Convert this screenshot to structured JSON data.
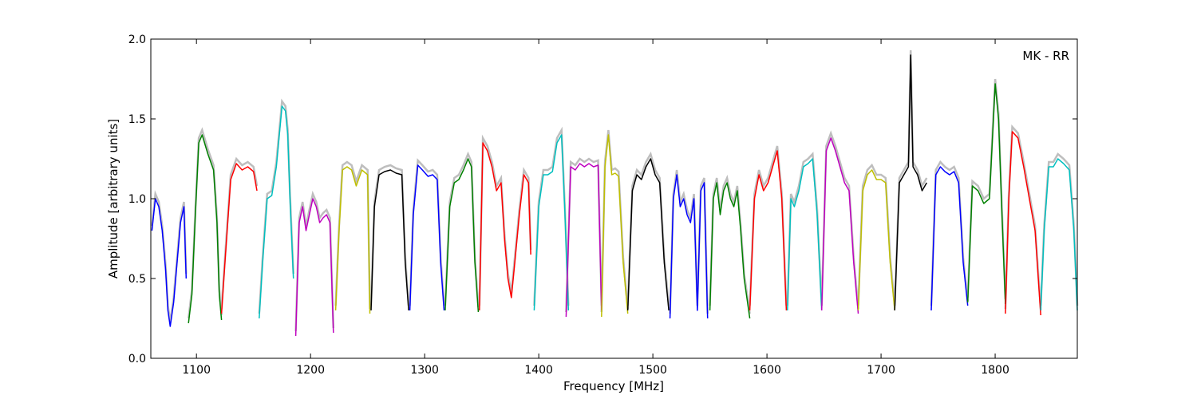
{
  "chart_data": {
    "type": "line",
    "title": "",
    "annotation": "MK - RR",
    "xlabel": "Frequency [MHz]",
    "ylabel": "Amplitude [arbitrary units]",
    "xlim": [
      1060,
      1872
    ],
    "ylim": [
      0.0,
      2.0
    ],
    "xticks": [
      1100,
      1200,
      1300,
      1400,
      1500,
      1600,
      1700,
      1800
    ],
    "xtick_labels": [
      "1100",
      "1200",
      "1300",
      "1400",
      "1500",
      "1600",
      "1700",
      "1800"
    ],
    "yticks": [
      0.0,
      0.5,
      1.0,
      1.5,
      2.0
    ],
    "ytick_labels": [
      "0.0",
      "0.5",
      "1.0",
      "1.5",
      "2.0"
    ],
    "grid": false,
    "legend": false,
    "background_color": "#bebebe",
    "series": [
      {
        "color": "#0000ff",
        "x": [
          1061,
          1064,
          1067,
          1070,
          1073,
          1075,
          1077,
          1080,
          1083,
          1086,
          1089,
          1091
        ],
        "y": [
          0.8,
          1.0,
          0.95,
          0.8,
          0.55,
          0.3,
          0.2,
          0.35,
          0.6,
          0.85,
          0.95,
          0.5
        ]
      },
      {
        "color": "#008000",
        "x": [
          1093,
          1096,
          1099,
          1102,
          1105,
          1110,
          1115,
          1118,
          1120,
          1122
        ],
        "y": [
          0.22,
          0.4,
          0.9,
          1.35,
          1.4,
          1.28,
          1.18,
          0.85,
          0.4,
          0.24
        ]
      },
      {
        "color": "#ff0000",
        "x": [
          1122,
          1125,
          1130,
          1135,
          1140,
          1145,
          1150,
          1153
        ],
        "y": [
          0.28,
          0.6,
          1.12,
          1.22,
          1.18,
          1.2,
          1.17,
          1.05
        ]
      },
      {
        "color": "#00bfbf",
        "x": [
          1155,
          1158,
          1162,
          1166,
          1170,
          1175,
          1178,
          1180,
          1182,
          1185
        ],
        "y": [
          0.25,
          0.6,
          1.0,
          1.02,
          1.2,
          1.58,
          1.55,
          1.4,
          1.0,
          0.5
        ]
      },
      {
        "color": "#bf00bf",
        "x": [
          1187,
          1190,
          1193,
          1196,
          1199,
          1202,
          1205,
          1208,
          1211,
          1214,
          1217,
          1220
        ],
        "y": [
          0.14,
          0.85,
          0.95,
          0.8,
          0.9,
          1.0,
          0.95,
          0.85,
          0.88,
          0.9,
          0.85,
          0.16
        ]
      },
      {
        "color": "#bfbf00",
        "x": [
          1222,
          1225,
          1228,
          1232,
          1236,
          1240,
          1245,
          1250,
          1252
        ],
        "y": [
          0.3,
          0.8,
          1.18,
          1.2,
          1.18,
          1.08,
          1.18,
          1.15,
          0.28
        ]
      },
      {
        "color": "#000000",
        "x": [
          1253,
          1256,
          1260,
          1265,
          1270,
          1275,
          1280,
          1283,
          1286
        ],
        "y": [
          0.3,
          0.95,
          1.15,
          1.17,
          1.18,
          1.16,
          1.15,
          0.6,
          0.3
        ]
      },
      {
        "color": "#0000ff",
        "x": [
          1287,
          1290,
          1294,
          1298,
          1303,
          1307,
          1311,
          1314,
          1317
        ],
        "y": [
          0.3,
          0.9,
          1.21,
          1.18,
          1.14,
          1.15,
          1.12,
          0.6,
          0.3
        ]
      },
      {
        "color": "#008000",
        "x": [
          1318,
          1322,
          1326,
          1330,
          1334,
          1338,
          1341,
          1344,
          1347
        ],
        "y": [
          0.3,
          0.95,
          1.1,
          1.12,
          1.18,
          1.25,
          1.2,
          0.6,
          0.29
        ]
      },
      {
        "color": "#ff0000",
        "x": [
          1348,
          1351,
          1355,
          1359,
          1363,
          1367,
          1370,
          1373,
          1376,
          1379,
          1383,
          1387,
          1391,
          1393
        ],
        "y": [
          0.3,
          1.35,
          1.3,
          1.2,
          1.05,
          1.1,
          0.75,
          0.5,
          0.38,
          0.6,
          0.9,
          1.15,
          1.1,
          0.65
        ]
      },
      {
        "color": "#00bfbf",
        "x": [
          1396,
          1400,
          1404,
          1408,
          1412,
          1416,
          1420,
          1423,
          1426
        ],
        "y": [
          0.3,
          0.95,
          1.15,
          1.15,
          1.17,
          1.35,
          1.4,
          0.9,
          0.3
        ]
      },
      {
        "color": "#bf00bf",
        "x": [
          1424,
          1428,
          1432,
          1436,
          1440,
          1444,
          1448,
          1452,
          1455
        ],
        "y": [
          0.26,
          1.2,
          1.18,
          1.22,
          1.2,
          1.22,
          1.2,
          1.21,
          0.3
        ]
      },
      {
        "color": "#bfbf00",
        "x": [
          1455,
          1458,
          1461,
          1464,
          1467,
          1470,
          1474,
          1478
        ],
        "y": [
          0.26,
          1.2,
          1.4,
          1.15,
          1.16,
          1.14,
          0.6,
          0.28
        ]
      },
      {
        "color": "#000000",
        "x": [
          1478,
          1482,
          1486,
          1490,
          1494,
          1498,
          1502,
          1506,
          1510,
          1514
        ],
        "y": [
          0.3,
          1.05,
          1.15,
          1.12,
          1.2,
          1.25,
          1.15,
          1.1,
          0.6,
          0.3
        ]
      },
      {
        "color": "#0000ff",
        "x": [
          1515,
          1518,
          1521,
          1524,
          1527,
          1530,
          1533,
          1536,
          1539,
          1542,
          1545,
          1548
        ],
        "y": [
          0.25,
          1.0,
          1.15,
          0.95,
          1.0,
          0.9,
          0.85,
          1.0,
          0.3,
          1.05,
          1.1,
          0.25
        ]
      },
      {
        "color": "#008000",
        "x": [
          1550,
          1553,
          1556,
          1559,
          1562,
          1565,
          1568,
          1571,
          1574,
          1577,
          1580,
          1585
        ],
        "y": [
          0.3,
          1.0,
          1.1,
          0.9,
          1.05,
          1.1,
          1.0,
          0.95,
          1.05,
          0.8,
          0.5,
          0.25
        ]
      },
      {
        "color": "#ff0000",
        "x": [
          1585,
          1589,
          1593,
          1597,
          1601,
          1605,
          1609,
          1613,
          1617
        ],
        "y": [
          0.3,
          1.0,
          1.15,
          1.05,
          1.1,
          1.2,
          1.3,
          1.0,
          0.3
        ]
      },
      {
        "color": "#00bfbf",
        "x": [
          1618,
          1621,
          1624,
          1628,
          1632,
          1636,
          1640,
          1644,
          1648
        ],
        "y": [
          0.3,
          1.0,
          0.95,
          1.05,
          1.2,
          1.22,
          1.25,
          0.9,
          0.3
        ]
      },
      {
        "color": "#bf00bf",
        "x": [
          1648,
          1652,
          1656,
          1660,
          1664,
          1668,
          1672,
          1676,
          1680
        ],
        "y": [
          0.3,
          1.3,
          1.38,
          1.3,
          1.2,
          1.1,
          1.05,
          0.6,
          0.28
        ]
      },
      {
        "color": "#bfbf00",
        "x": [
          1680,
          1684,
          1688,
          1692,
          1696,
          1700,
          1704,
          1708,
          1712
        ],
        "y": [
          0.3,
          1.05,
          1.15,
          1.18,
          1.12,
          1.12,
          1.1,
          0.6,
          0.3
        ]
      },
      {
        "color": "#000000",
        "x": [
          1712,
          1716,
          1720,
          1724,
          1726,
          1728,
          1732,
          1736,
          1740
        ],
        "y": [
          0.3,
          1.1,
          1.15,
          1.2,
          1.9,
          1.2,
          1.15,
          1.05,
          1.1
        ]
      },
      {
        "color": "#0000ff",
        "x": [
          1744,
          1748,
          1752,
          1756,
          1760,
          1764,
          1768,
          1772,
          1776
        ],
        "y": [
          0.3,
          1.15,
          1.2,
          1.17,
          1.15,
          1.17,
          1.1,
          0.6,
          0.33
        ]
      },
      {
        "color": "#008000",
        "x": [
          1776,
          1780,
          1785,
          1790,
          1795,
          1800,
          1803,
          1806,
          1809
        ],
        "y": [
          0.35,
          1.08,
          1.05,
          0.97,
          1.0,
          1.72,
          1.5,
          0.9,
          0.34
        ]
      },
      {
        "color": "#ff0000",
        "x": [
          1809,
          1812,
          1815,
          1820,
          1825,
          1830,
          1835,
          1840
        ],
        "y": [
          0.28,
          1.0,
          1.42,
          1.38,
          1.2,
          1.0,
          0.8,
          0.27
        ]
      },
      {
        "color": "#00bfbf",
        "x": [
          1840,
          1843,
          1847,
          1851,
          1855,
          1860,
          1865,
          1869,
          1872
        ],
        "y": [
          0.3,
          0.8,
          1.2,
          1.2,
          1.25,
          1.22,
          1.18,
          0.8,
          0.3
        ]
      }
    ]
  }
}
